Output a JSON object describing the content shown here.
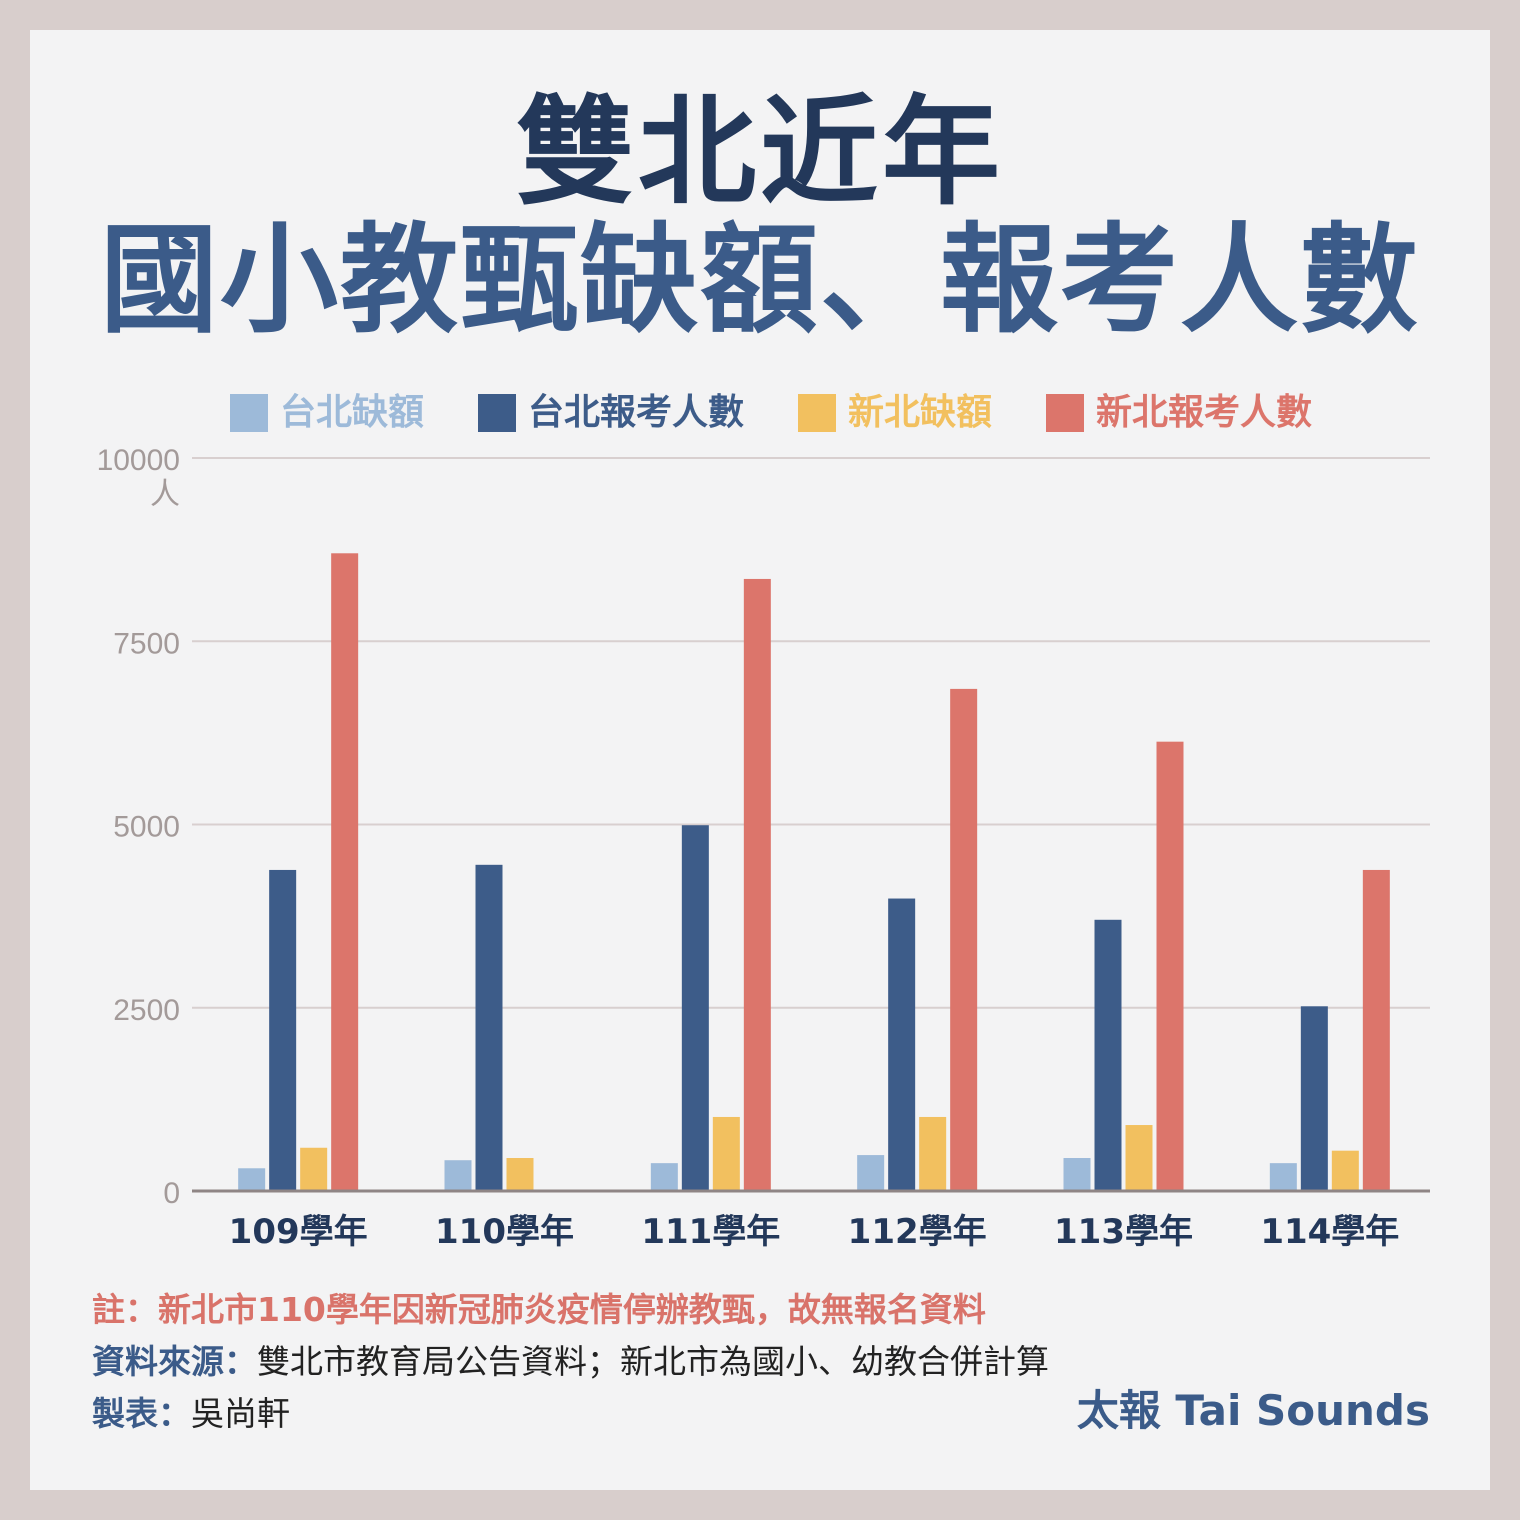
{
  "title_line1": "雙北近年",
  "title_line2": "國小教甄缺額、報考人數",
  "chart_data": {
    "type": "bar",
    "categories": [
      "109學年",
      "110學年",
      "111學年",
      "112學年",
      "113學年",
      "114學年"
    ],
    "series": [
      {
        "name": "台北缺額",
        "color": "#9dbad9",
        "values": [
          310,
          420,
          380,
          490,
          450,
          380
        ]
      },
      {
        "name": "台北報考人數",
        "color": "#3d5c89",
        "values": [
          4380,
          4450,
          4990,
          3990,
          3700,
          2520
        ]
      },
      {
        "name": "新北缺額",
        "color": "#f2c05f",
        "values": [
          590,
          450,
          1010,
          1010,
          900,
          550
        ]
      },
      {
        "name": "新北報考人數",
        "color": "#dc756b",
        "values": [
          8700,
          null,
          8350,
          6850,
          6130,
          4380
        ]
      }
    ],
    "yticks": [
      "0",
      "2500",
      "5000",
      "7500",
      "10000"
    ],
    "ylabel": "人",
    "ylim": [
      0,
      10000
    ],
    "grid": true,
    "legend": "top"
  },
  "notes": {
    "note_text": "註：新北市110學年因新冠肺炎疫情停辦教甄，故無報名資料",
    "source_key": "資料來源：",
    "source_text": "雙北市教育局公告資料；新北市為國小、幼教合併計算",
    "author_key": "製表：",
    "author_text": "吳尚軒"
  },
  "brand": "太報 Tai Sounds"
}
